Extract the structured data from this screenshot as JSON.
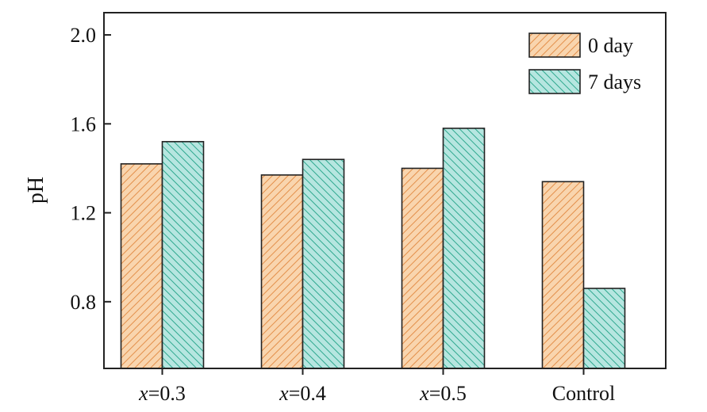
{
  "chart_data": {
    "type": "bar",
    "categories": [
      "x=0.3",
      "x=0.4",
      "x=0.5",
      "Control"
    ],
    "category_labels": [
      {
        "italic": "x",
        "rest": "=0.3"
      },
      {
        "italic": "x",
        "rest": "=0.4"
      },
      {
        "italic": "x",
        "rest": "=0.5"
      },
      {
        "italic": "",
        "rest": "Control"
      }
    ],
    "series": [
      {
        "name": "0 day",
        "values": [
          1.42,
          1.37,
          1.4,
          1.34
        ],
        "color": "#f9d5ae",
        "hatch_color": "#e38f4a",
        "pattern": "forward-hatch"
      },
      {
        "name": "7 days",
        "values": [
          1.52,
          1.44,
          1.58,
          0.86
        ],
        "color": "#b6e6e0",
        "hatch_color": "#2fa88f",
        "pattern": "back-hatch"
      }
    ],
    "title": "",
    "xlabel": "",
    "ylabel": "pH",
    "ylim": [
      0.5,
      2.1
    ],
    "yticks": [
      "0.8",
      "1.2",
      "1.6",
      "2.0"
    ],
    "ytick_values": [
      0.8,
      1.2,
      1.6,
      2.0
    ],
    "grid": false,
    "legend_position": "top-right"
  }
}
